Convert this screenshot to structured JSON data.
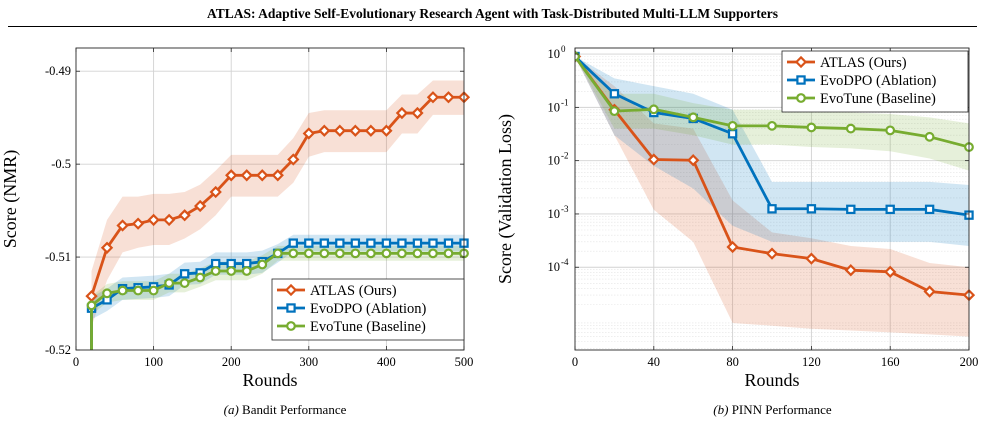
{
  "header": {
    "title": "ATLAS: Adaptive Self-Evolutionary Research Agent with Task-Distributed Multi-LLM Supporters"
  },
  "captions": [
    {
      "tag": "(a)",
      "text": "Bandit Performance"
    },
    {
      "tag": "(b)",
      "text": "PINN Performance"
    }
  ],
  "colors": {
    "atlas": "#d95319",
    "evodpo": "#0072bd",
    "evotune": "#77ac30"
  },
  "chart_data": [
    {
      "type": "line",
      "xlabel": "Rounds",
      "ylabel": "Score (NMR)",
      "xlim": [
        0,
        500
      ],
      "ylim": [
        -0.52,
        -0.4875
      ],
      "xticks": [
        0,
        100,
        200,
        300,
        400,
        500
      ],
      "yticks": [
        -0.52,
        -0.51,
        -0.5,
        -0.49
      ],
      "ytick_labels": [
        "-0.52",
        "-0.51",
        "-0.5",
        "-0.49"
      ],
      "grid": true,
      "legend_position": "bottom-right",
      "x": [
        20,
        40,
        60,
        80,
        100,
        120,
        140,
        160,
        180,
        200,
        220,
        240,
        260,
        280,
        300,
        320,
        340,
        360,
        380,
        400,
        420,
        440,
        460,
        480,
        500
      ],
      "series": [
        {
          "name": "ATLAS (Ours)",
          "marker": "diamond",
          "values": [
            -0.5142,
            -0.509,
            -0.5066,
            -0.5064,
            -0.506,
            -0.506,
            -0.5055,
            -0.5045,
            -0.503,
            -0.5012,
            -0.5012,
            -0.5012,
            -0.5012,
            -0.4995,
            -0.4967,
            -0.4964,
            -0.4964,
            -0.4964,
            -0.4964,
            -0.4964,
            -0.4945,
            -0.4945,
            -0.4928,
            -0.4928,
            -0.4928
          ],
          "band_lower": [
            -0.5175,
            -0.5125,
            -0.5095,
            -0.509,
            -0.5087,
            -0.5087,
            -0.508,
            -0.507,
            -0.5055,
            -0.5035,
            -0.5035,
            -0.5035,
            -0.5035,
            -0.502,
            -0.4992,
            -0.4987,
            -0.4987,
            -0.4987,
            -0.4987,
            -0.4987,
            -0.4967,
            -0.4967,
            -0.4947,
            -0.4947,
            -0.4947
          ],
          "band_upper": [
            -0.5115,
            -0.506,
            -0.5035,
            -0.5035,
            -0.5032,
            -0.5032,
            -0.503,
            -0.5022,
            -0.5007,
            -0.499,
            -0.499,
            -0.499,
            -0.499,
            -0.4972,
            -0.4945,
            -0.4942,
            -0.4942,
            -0.4942,
            -0.4942,
            -0.4942,
            -0.4925,
            -0.4925,
            -0.491,
            -0.491,
            -0.491
          ]
        },
        {
          "name": "EvoDPO (Ablation)",
          "marker": "square",
          "values": [
            -0.5155,
            -0.5146,
            -0.5134,
            -0.5133,
            -0.5132,
            -0.513,
            -0.5118,
            -0.5117,
            -0.5107,
            -0.5107,
            -0.5107,
            -0.5105,
            -0.5096,
            -0.5085,
            -0.5085,
            -0.5085,
            -0.5085,
            -0.5085,
            -0.5085,
            -0.5085,
            -0.5085,
            -0.5085,
            -0.5085,
            -0.5085,
            -0.5085
          ],
          "band_lower": [
            -0.5167,
            -0.5158,
            -0.5146,
            -0.5145,
            -0.5144,
            -0.5142,
            -0.513,
            -0.5129,
            -0.5119,
            -0.5119,
            -0.5119,
            -0.5117,
            -0.5106,
            -0.5094,
            -0.5094,
            -0.5094,
            -0.5094,
            -0.5094,
            -0.5094,
            -0.5094,
            -0.5094,
            -0.5094,
            -0.5094,
            -0.5094,
            -0.5094
          ],
          "band_upper": [
            -0.5143,
            -0.5134,
            -0.5122,
            -0.5121,
            -0.512,
            -0.5118,
            -0.5106,
            -0.5105,
            -0.5095,
            -0.5095,
            -0.5095,
            -0.5093,
            -0.5086,
            -0.5076,
            -0.5076,
            -0.5076,
            -0.5076,
            -0.5076,
            -0.5076,
            -0.5076,
            -0.5076,
            -0.5076,
            -0.5076,
            -0.5076,
            -0.5076
          ]
        },
        {
          "name": "EvoTune (Baseline)",
          "marker": "circle",
          "values": [
            -0.5152,
            -0.5139,
            -0.5136,
            -0.5136,
            -0.5136,
            -0.5128,
            -0.5128,
            -0.5122,
            -0.5115,
            -0.5115,
            -0.5115,
            -0.5108,
            -0.5096,
            -0.5096,
            -0.5096,
            -0.5096,
            -0.5096,
            -0.5096,
            -0.5096,
            -0.5096,
            -0.5096,
            -0.5096,
            -0.5096,
            -0.5096,
            -0.5096
          ],
          "band_lower": [
            -0.5162,
            -0.5149,
            -0.5146,
            -0.5146,
            -0.5146,
            -0.5138,
            -0.5138,
            -0.5132,
            -0.5125,
            -0.5125,
            -0.5125,
            -0.5118,
            -0.5104,
            -0.5104,
            -0.5104,
            -0.5104,
            -0.5104,
            -0.5104,
            -0.5104,
            -0.5104,
            -0.5104,
            -0.5104,
            -0.5104,
            -0.5104,
            -0.5104
          ],
          "band_upper": [
            -0.5142,
            -0.5129,
            -0.5126,
            -0.5126,
            -0.5126,
            -0.5118,
            -0.5118,
            -0.5112,
            -0.5105,
            -0.5105,
            -0.5105,
            -0.5098,
            -0.5088,
            -0.5088,
            -0.5088,
            -0.5088,
            -0.5088,
            -0.5088,
            -0.5088,
            -0.5088,
            -0.5088,
            -0.5088,
            -0.5088,
            -0.5088,
            -0.5088
          ]
        }
      ]
    },
    {
      "type": "line",
      "xlabel": "Rounds",
      "ylabel": "Score (Validation Loss)",
      "yscale": "log",
      "xlim": [
        0,
        200
      ],
      "ylim": [
        2.8e-06,
        1.3
      ],
      "xticks": [
        0,
        40,
        80,
        120,
        160,
        200
      ],
      "yticks": [
        0.0001,
        0.001,
        0.01,
        0.1,
        1
      ],
      "ytick_labels": [
        "10",
        "10",
        "10",
        "10",
        "10"
      ],
      "ytick_exponents": [
        "-4",
        "-3",
        "-2",
        "-1",
        "0"
      ],
      "grid": true,
      "legend_position": "top-right",
      "x": [
        0,
        20,
        40,
        60,
        80,
        100,
        120,
        140,
        160,
        180,
        200
      ],
      "series": [
        {
          "name": "ATLAS (Ours)",
          "marker": "diamond",
          "values": [
            0.9,
            0.09,
            0.0105,
            0.0102,
            0.00024,
            0.00018,
            0.000145,
            8.8e-05,
            8.2e-05,
            3.5e-05,
            3e-05
          ],
          "band_lower": [
            0.9,
            0.03,
            0.0012,
            0.0003,
            9e-06,
            8e-06,
            7e-06,
            6.5e-06,
            6e-06,
            5.5e-06,
            5e-06
          ],
          "band_upper": [
            0.9,
            0.25,
            0.05,
            0.04,
            0.0018,
            0.00045,
            0.00035,
            0.00025,
            0.00022,
            0.00012,
            0.0001
          ]
        },
        {
          "name": "EvoDPO (Ablation)",
          "marker": "square",
          "values": [
            0.9,
            0.18,
            0.08,
            0.062,
            0.032,
            0.00125,
            0.00125,
            0.00122,
            0.00122,
            0.00122,
            0.00095
          ],
          "band_lower": [
            0.9,
            0.03,
            0.008,
            0.003,
            0.0006,
            0.0003,
            0.0003,
            0.0003,
            0.0003,
            0.0003,
            0.00025
          ],
          "band_upper": [
            0.9,
            0.35,
            0.25,
            0.18,
            0.09,
            0.004,
            0.004,
            0.004,
            0.004,
            0.004,
            0.0035
          ]
        },
        {
          "name": "EvoTune (Baseline)",
          "marker": "circle",
          "values": [
            0.9,
            0.085,
            0.092,
            0.065,
            0.045,
            0.045,
            0.042,
            0.04,
            0.037,
            0.028,
            0.018
          ],
          "band_lower": [
            0.9,
            0.04,
            0.04,
            0.03,
            0.02,
            0.02,
            0.018,
            0.017,
            0.015,
            0.011,
            0.0065
          ],
          "band_upper": [
            0.9,
            0.18,
            0.18,
            0.12,
            0.09,
            0.09,
            0.085,
            0.08,
            0.075,
            0.065,
            0.05
          ]
        }
      ]
    }
  ]
}
